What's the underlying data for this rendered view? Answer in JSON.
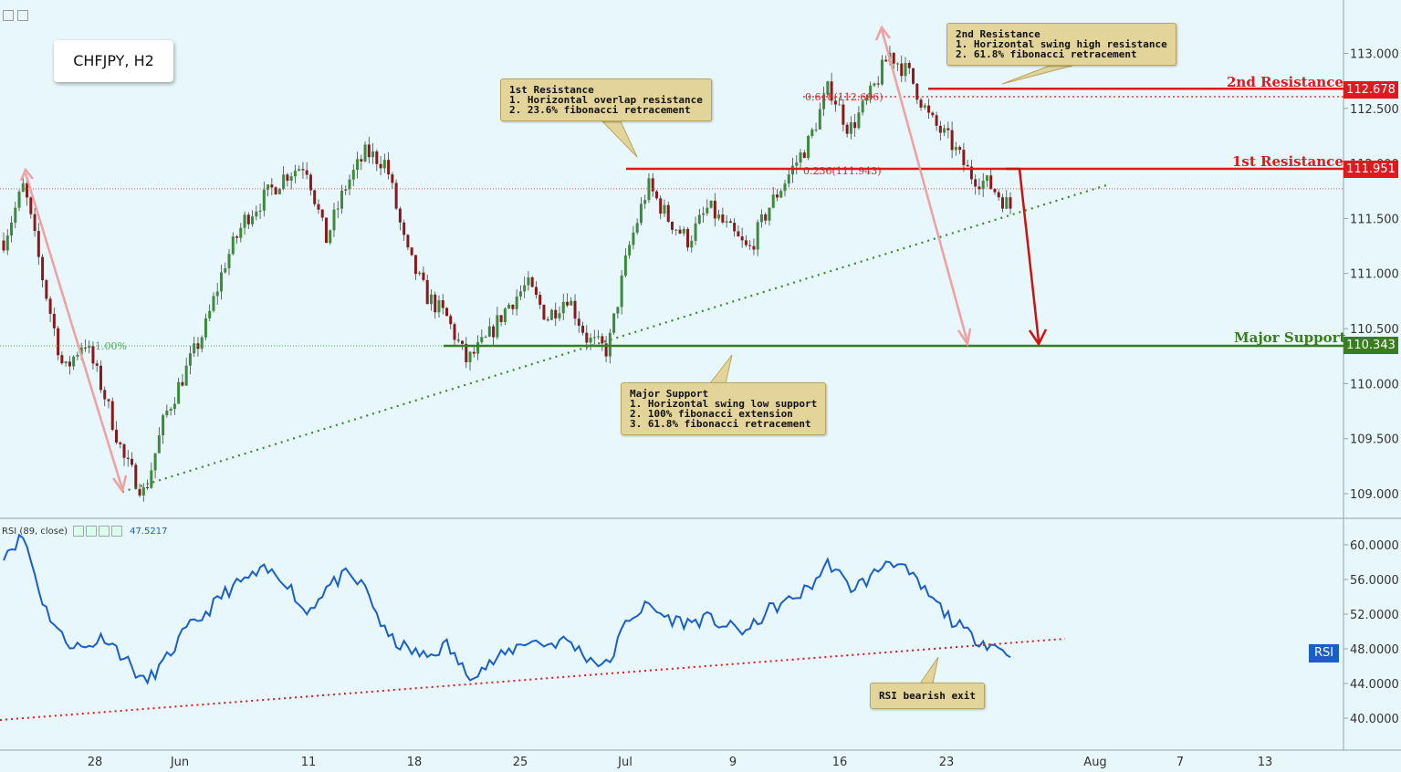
{
  "symbol": "CHFJPY, H2",
  "rsi_legend": {
    "label": "RSI (89, close)",
    "value": "47.5217",
    "tag": "RSI"
  },
  "callouts": {
    "r1": {
      "lines": [
        "1st Resistance",
        "1. Horizontal overlap resistance",
        "2. 23.6% fibonacci retracement"
      ]
    },
    "r2": {
      "lines": [
        "2nd Resistance",
        "1. Horizontal swing high resistance",
        "2. 61.8% fibonacci retracement"
      ]
    },
    "support": {
      "lines": [
        "Major Support",
        "1. Horizontal swing low support",
        "2. 100% fibonacci extension",
        "3. 61.8% fibonacci retracement"
      ]
    },
    "rsi": {
      "lines": [
        "RSI bearish exit"
      ]
    }
  },
  "levels": {
    "r2": {
      "label": "2nd Resistance",
      "price": "112.678",
      "color": "#e0191f"
    },
    "r1": {
      "label": "1st Resistance",
      "price": "111.951",
      "color": "#e0191f"
    },
    "support": {
      "label": "Major Support",
      "price": "110.343",
      "color": "#3a7d1e"
    }
  },
  "fib_labels": {
    "f618": "0.618(112.606)",
    "f236": "0.236(111.943)",
    "f100": "1.00%"
  },
  "colors": {
    "candle_up": "#3c8a3c",
    "candle_down": "#8a1a1a",
    "rsi_line": "#1a5fc9",
    "background": "#e8f7fc"
  },
  "chart_data": [
    {
      "type": "candlestick",
      "title": "CHFJPY, H2",
      "ylim": [
        108.8,
        113.4
      ],
      "y_ticks": [
        109.0,
        109.5,
        110.0,
        110.5,
        111.0,
        111.5,
        112.0,
        112.5,
        113.0
      ],
      "y_tick_labels": [
        "109.000",
        "109.500",
        "110.000",
        "110.500",
        "111.000",
        "111.500",
        "112.000",
        "112.500",
        "113.000"
      ],
      "x_tick_labels": [
        "28",
        "Jun",
        "11",
        "18",
        "25",
        "Jul",
        "9",
        "16",
        "23",
        "Aug",
        "7",
        "13"
      ],
      "series": [
        {
          "values": [
            111.3,
            111.8,
            110.9,
            110.1,
            110.4,
            109.9,
            109.3,
            109.0,
            109.7,
            110.1,
            110.5,
            111.1,
            111.5,
            111.7,
            111.9,
            112.0,
            111.3,
            111.8,
            112.1,
            112.0,
            111.2,
            110.8,
            110.6,
            110.2,
            110.4,
            110.7,
            110.9,
            110.6,
            110.8,
            110.4,
            110.3,
            111.2,
            111.8,
            111.5,
            111.3,
            111.6,
            111.4,
            111.2,
            111.6,
            111.9,
            112.2,
            112.7,
            112.3,
            112.6,
            113.0,
            112.8,
            112.4,
            112.2,
            111.9,
            111.8,
            111.6
          ]
        }
      ],
      "current_price": 111.77,
      "annotations": [
        "1st Resistance",
        "2nd Resistance",
        "Major Support"
      ]
    },
    {
      "type": "line",
      "title": "RSI (89, close)",
      "ylim": [
        37.5,
        62.5
      ],
      "y_ticks": [
        40,
        44,
        48,
        52,
        56,
        60
      ],
      "y_tick_labels": [
        "40.0000",
        "44.0000",
        "48.0000",
        "52.0000",
        "56.0000",
        "60.0000"
      ],
      "series": [
        {
          "name": "RSI",
          "values": [
            59.0,
            61.0,
            53.0,
            49.0,
            48.0,
            49.5,
            47.0,
            44.0,
            46.5,
            50.0,
            52.0,
            54.5,
            56.0,
            57.0,
            56.0,
            52.0,
            55.0,
            56.5,
            55.0,
            49.5,
            48.0,
            47.0,
            48.5,
            45.0,
            46.0,
            47.5,
            49.0,
            48.5,
            49.0,
            47.0,
            46.0,
            51.5,
            53.0,
            51.5,
            51.0,
            51.5,
            50.5,
            50.0,
            52.5,
            53.5,
            55.0,
            58.0,
            55.0,
            56.0,
            58.5,
            56.5,
            54.0,
            51.5,
            49.5,
            48.5,
            47.5
          ]
        }
      ],
      "last_value": 47.5217
    }
  ]
}
